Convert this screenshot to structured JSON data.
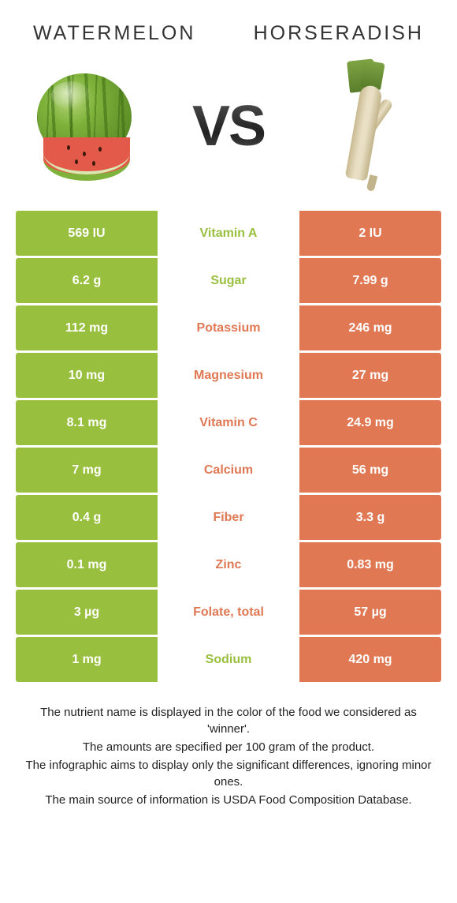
{
  "left_food": {
    "name": "WATERMELON",
    "color": "#99bf3e"
  },
  "right_food": {
    "name": "HORSERADISH",
    "color": "#e07854"
  },
  "vs_label": "VS",
  "rows": [
    {
      "left": "569 IU",
      "label": "Vitamin A",
      "right": "2 IU",
      "winner": "left"
    },
    {
      "left": "6.2 g",
      "label": "Sugar",
      "right": "7.99 g",
      "winner": "left"
    },
    {
      "left": "112 mg",
      "label": "Potassium",
      "right": "246 mg",
      "winner": "right"
    },
    {
      "left": "10 mg",
      "label": "Magnesium",
      "right": "27 mg",
      "winner": "right"
    },
    {
      "left": "8.1 mg",
      "label": "Vitamin C",
      "right": "24.9 mg",
      "winner": "right"
    },
    {
      "left": "7 mg",
      "label": "Calcium",
      "right": "56 mg",
      "winner": "right"
    },
    {
      "left": "0.4 g",
      "label": "Fiber",
      "right": "3.3 g",
      "winner": "right"
    },
    {
      "left": "0.1 mg",
      "label": "Zinc",
      "right": "0.83 mg",
      "winner": "right"
    },
    {
      "left": "3 µg",
      "label": "Folate, total",
      "right": "57 µg",
      "winner": "right"
    },
    {
      "left": "1 mg",
      "label": "Sodium",
      "right": "420 mg",
      "winner": "left"
    }
  ],
  "footnote": {
    "line1": "The nutrient name is displayed in the color of the food we considered as 'winner'.",
    "line2": "The amounts are specified per 100 gram of the product.",
    "line3": "The infographic aims to display only the significant differences, ignoring minor ones.",
    "line4": "The main source of information is USDA Food Composition Database."
  }
}
